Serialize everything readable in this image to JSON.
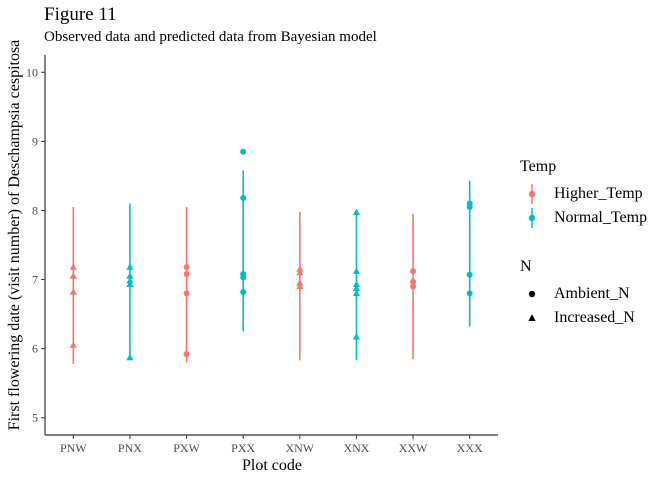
{
  "chart_data": {
    "type": "scatter",
    "title": "Figure 11",
    "subtitle": "Observed data and predicted data from Bayesian model",
    "xlabel": "Plot code",
    "ylabel": "First flowering date (visit number) of Deschampsia cespitosa",
    "categories": [
      "PNW",
      "PNX",
      "PXW",
      "PXX",
      "XNW",
      "XNX",
      "XXW",
      "XXX"
    ],
    "ylim": [
      4.75,
      10.25
    ],
    "yticks": [
      5,
      6,
      7,
      8,
      9,
      10
    ],
    "grid": false,
    "legend_position": "right",
    "colors": {
      "Higher_Temp": "#f8766d",
      "Normal_Temp": "#00bfc4",
      "axis": "#333333"
    },
    "legend": {
      "color_title": "Temp",
      "color_entries": [
        "Higher_Temp",
        "Normal_Temp"
      ],
      "shape_title": "N",
      "shape_entries": [
        "Ambient_N",
        "Increased_N"
      ]
    },
    "series": [
      {
        "category": "PNW",
        "temp": "Higher_Temp",
        "intervals": [
          [
            5.78,
            8.05
          ]
        ],
        "points": [
          {
            "y": 7.18,
            "n": "Increased_N"
          },
          {
            "y": 7.05,
            "n": "Increased_N"
          },
          {
            "y": 6.82,
            "n": "Increased_N"
          },
          {
            "y": 6.05,
            "n": "Increased_N"
          }
        ]
      },
      {
        "category": "PNX",
        "temp": "Normal_Temp",
        "intervals": [
          [
            5.83,
            8.1
          ]
        ],
        "points": [
          {
            "y": 7.18,
            "n": "Increased_N"
          },
          {
            "y": 7.05,
            "n": "Increased_N"
          },
          {
            "y": 6.98,
            "n": "Increased_N"
          },
          {
            "y": 6.93,
            "n": "Increased_N"
          },
          {
            "y": 5.87,
            "n": "Increased_N"
          }
        ]
      },
      {
        "category": "PXW",
        "temp": "Higher_Temp",
        "intervals": [
          [
            5.8,
            8.05
          ]
        ],
        "points": [
          {
            "y": 7.18,
            "n": "Ambient_N"
          },
          {
            "y": 7.08,
            "n": "Ambient_N"
          },
          {
            "y": 6.8,
            "n": "Ambient_N"
          },
          {
            "y": 5.92,
            "n": "Ambient_N"
          }
        ]
      },
      {
        "category": "PXX",
        "temp": "Normal_Temp",
        "intervals": [
          [
            6.25,
            8.58
          ]
        ],
        "points": [
          {
            "y": 8.85,
            "n": "Ambient_N"
          },
          {
            "y": 8.18,
            "n": "Ambient_N"
          },
          {
            "y": 7.08,
            "n": "Ambient_N"
          },
          {
            "y": 7.03,
            "n": "Ambient_N"
          },
          {
            "y": 6.82,
            "n": "Ambient_N"
          }
        ]
      },
      {
        "category": "XNW",
        "temp": "Higher_Temp",
        "intervals": [
          [
            5.83,
            7.98
          ]
        ],
        "points": [
          {
            "y": 7.15,
            "n": "Increased_N"
          },
          {
            "y": 7.1,
            "n": "Increased_N"
          },
          {
            "y": 6.95,
            "n": "Increased_N"
          },
          {
            "y": 6.9,
            "n": "Increased_N"
          }
        ]
      },
      {
        "category": "XNX",
        "temp": "Normal_Temp",
        "intervals": [
          [
            5.83,
            7.98
          ]
        ],
        "points": [
          {
            "y": 7.97,
            "n": "Increased_N"
          },
          {
            "y": 7.12,
            "n": "Increased_N"
          },
          {
            "y": 6.93,
            "n": "Increased_N"
          },
          {
            "y": 6.87,
            "n": "Increased_N"
          },
          {
            "y": 6.8,
            "n": "Increased_N"
          },
          {
            "y": 6.17,
            "n": "Increased_N"
          }
        ]
      },
      {
        "category": "XXW",
        "temp": "Higher_Temp",
        "intervals": [
          [
            5.85,
            7.95
          ]
        ],
        "points": [
          {
            "y": 7.12,
            "n": "Ambient_N"
          },
          {
            "y": 6.97,
            "n": "Ambient_N"
          },
          {
            "y": 6.9,
            "n": "Ambient_N"
          }
        ]
      },
      {
        "category": "XXX",
        "temp": "Normal_Temp",
        "intervals": [
          [
            6.32,
            8.43
          ]
        ],
        "points": [
          {
            "y": 8.1,
            "n": "Ambient_N"
          },
          {
            "y": 8.05,
            "n": "Ambient_N"
          },
          {
            "y": 7.07,
            "n": "Ambient_N"
          },
          {
            "y": 6.8,
            "n": "Ambient_N"
          }
        ]
      }
    ]
  }
}
